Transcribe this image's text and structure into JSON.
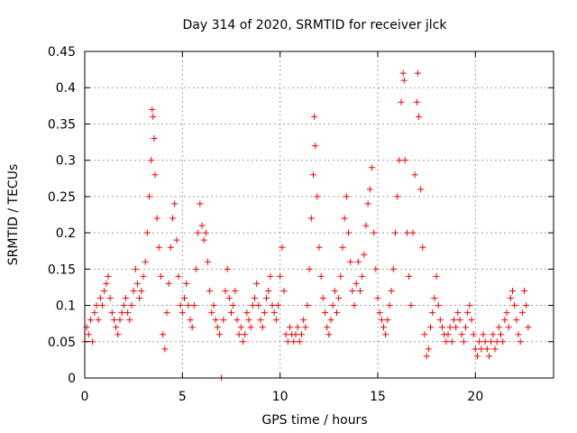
{
  "chart_data": {
    "type": "scatter",
    "title": "Day 314 of 2020, SRMTID for receiver jlck",
    "xlabel": "GPS time / hours",
    "ylabel": "SRMTID / TECUs",
    "xlim": [
      0,
      24
    ],
    "ylim": [
      0,
      0.45
    ],
    "xticks": [
      "0",
      "5",
      "10",
      "15",
      "20"
    ],
    "xtick_values": [
      0,
      5,
      10,
      15,
      20
    ],
    "yticks": [
      "0",
      "0.05",
      "0.1",
      "0.15",
      "0.2",
      "0.25",
      "0.3",
      "0.35",
      "0.4",
      "0.45"
    ],
    "ytick_values": [
      0,
      0.05,
      0.1,
      0.15,
      0.2,
      0.25,
      0.3,
      0.35,
      0.4,
      0.45
    ],
    "grid": true,
    "marker": "+",
    "color": "#ff0000",
    "series": [
      {
        "name": "SRMTID",
        "points": [
          [
            0.0,
            0.05
          ],
          [
            0.1,
            0.07
          ],
          [
            0.2,
            0.06
          ],
          [
            0.3,
            0.08
          ],
          [
            0.4,
            0.05
          ],
          [
            0.5,
            0.09
          ],
          [
            0.6,
            0.1
          ],
          [
            0.7,
            0.08
          ],
          [
            0.8,
            0.11
          ],
          [
            0.9,
            0.1
          ],
          [
            1.0,
            0.12
          ],
          [
            1.1,
            0.13
          ],
          [
            1.2,
            0.14
          ],
          [
            1.3,
            0.11
          ],
          [
            1.4,
            0.09
          ],
          [
            1.5,
            0.08
          ],
          [
            1.6,
            0.07
          ],
          [
            1.7,
            0.06
          ],
          [
            1.8,
            0.08
          ],
          [
            1.9,
            0.09
          ],
          [
            2.0,
            0.1
          ],
          [
            2.1,
            0.11
          ],
          [
            2.2,
            0.09
          ],
          [
            2.3,
            0.08
          ],
          [
            2.4,
            0.1
          ],
          [
            2.5,
            0.12
          ],
          [
            2.6,
            0.15
          ],
          [
            2.7,
            0.13
          ],
          [
            2.8,
            0.11
          ],
          [
            2.9,
            0.12
          ],
          [
            3.0,
            0.14
          ],
          [
            3.1,
            0.16
          ],
          [
            3.2,
            0.2
          ],
          [
            3.3,
            0.25
          ],
          [
            3.4,
            0.3
          ],
          [
            3.45,
            0.37
          ],
          [
            3.5,
            0.36
          ],
          [
            3.55,
            0.33
          ],
          [
            3.6,
            0.28
          ],
          [
            3.7,
            0.22
          ],
          [
            3.8,
            0.18
          ],
          [
            3.9,
            0.14
          ],
          [
            4.0,
            0.06
          ],
          [
            4.1,
            0.04
          ],
          [
            4.2,
            0.09
          ],
          [
            4.3,
            0.13
          ],
          [
            4.4,
            0.18
          ],
          [
            4.5,
            0.22
          ],
          [
            4.6,
            0.24
          ],
          [
            4.7,
            0.19
          ],
          [
            4.8,
            0.14
          ],
          [
            4.9,
            0.1
          ],
          [
            5.0,
            0.09
          ],
          [
            5.1,
            0.11
          ],
          [
            5.2,
            0.13
          ],
          [
            5.3,
            0.1
          ],
          [
            5.4,
            0.08
          ],
          [
            5.5,
            0.07
          ],
          [
            5.6,
            0.1
          ],
          [
            5.7,
            0.15
          ],
          [
            5.8,
            0.2
          ],
          [
            5.9,
            0.24
          ],
          [
            6.0,
            0.21
          ],
          [
            6.1,
            0.19
          ],
          [
            6.2,
            0.2
          ],
          [
            6.3,
            0.16
          ],
          [
            6.4,
            0.12
          ],
          [
            6.5,
            0.09
          ],
          [
            6.6,
            0.1
          ],
          [
            6.7,
            0.08
          ],
          [
            6.8,
            0.07
          ],
          [
            6.9,
            0.06
          ],
          [
            7.0,
            0.0
          ],
          [
            7.1,
            0.08
          ],
          [
            7.2,
            0.12
          ],
          [
            7.3,
            0.15
          ],
          [
            7.4,
            0.11
          ],
          [
            7.5,
            0.09
          ],
          [
            7.6,
            0.1
          ],
          [
            7.7,
            0.12
          ],
          [
            7.8,
            0.08
          ],
          [
            7.9,
            0.06
          ],
          [
            8.0,
            0.07
          ],
          [
            8.1,
            0.05
          ],
          [
            8.2,
            0.06
          ],
          [
            8.3,
            0.09
          ],
          [
            8.4,
            0.08
          ],
          [
            8.5,
            0.07
          ],
          [
            8.6,
            0.1
          ],
          [
            8.7,
            0.11
          ],
          [
            8.8,
            0.13
          ],
          [
            8.9,
            0.1
          ],
          [
            9.0,
            0.08
          ],
          [
            9.1,
            0.07
          ],
          [
            9.2,
            0.09
          ],
          [
            9.3,
            0.11
          ],
          [
            9.4,
            0.12
          ],
          [
            9.5,
            0.14
          ],
          [
            9.6,
            0.1
          ],
          [
            9.7,
            0.09
          ],
          [
            9.8,
            0.08
          ],
          [
            9.9,
            0.1
          ],
          [
            10.0,
            0.14
          ],
          [
            10.1,
            0.18
          ],
          [
            10.2,
            0.12
          ],
          [
            10.3,
            0.06
          ],
          [
            10.4,
            0.05
          ],
          [
            10.5,
            0.07
          ],
          [
            10.6,
            0.06
          ],
          [
            10.7,
            0.05
          ],
          [
            10.8,
            0.06
          ],
          [
            10.9,
            0.07
          ],
          [
            11.0,
            0.05
          ],
          [
            11.1,
            0.06
          ],
          [
            11.2,
            0.08
          ],
          [
            11.3,
            0.07
          ],
          [
            11.4,
            0.1
          ],
          [
            11.5,
            0.15
          ],
          [
            11.6,
            0.22
          ],
          [
            11.7,
            0.28
          ],
          [
            11.75,
            0.36
          ],
          [
            11.8,
            0.32
          ],
          [
            11.9,
            0.25
          ],
          [
            12.0,
            0.18
          ],
          [
            12.1,
            0.14
          ],
          [
            12.2,
            0.11
          ],
          [
            12.3,
            0.09
          ],
          [
            12.4,
            0.07
          ],
          [
            12.5,
            0.06
          ],
          [
            12.6,
            0.08
          ],
          [
            12.7,
            0.1
          ],
          [
            12.8,
            0.12
          ],
          [
            12.9,
            0.09
          ],
          [
            13.0,
            0.11
          ],
          [
            13.1,
            0.14
          ],
          [
            13.2,
            0.18
          ],
          [
            13.3,
            0.22
          ],
          [
            13.4,
            0.25
          ],
          [
            13.5,
            0.2
          ],
          [
            13.6,
            0.16
          ],
          [
            13.7,
            0.12
          ],
          [
            13.8,
            0.1
          ],
          [
            13.9,
            0.13
          ],
          [
            14.0,
            0.16
          ],
          [
            14.1,
            0.12
          ],
          [
            14.2,
            0.14
          ],
          [
            14.3,
            0.17
          ],
          [
            14.4,
            0.21
          ],
          [
            14.5,
            0.24
          ],
          [
            14.6,
            0.26
          ],
          [
            14.7,
            0.29
          ],
          [
            14.8,
            0.2
          ],
          [
            14.9,
            0.15
          ],
          [
            15.0,
            0.11
          ],
          [
            15.1,
            0.09
          ],
          [
            15.2,
            0.08
          ],
          [
            15.3,
            0.07
          ],
          [
            15.4,
            0.06
          ],
          [
            15.5,
            0.08
          ],
          [
            15.6,
            0.1
          ],
          [
            15.7,
            0.12
          ],
          [
            15.8,
            0.15
          ],
          [
            15.9,
            0.2
          ],
          [
            16.0,
            0.25
          ],
          [
            16.1,
            0.3
          ],
          [
            16.2,
            0.38
          ],
          [
            16.3,
            0.42
          ],
          [
            16.35,
            0.41
          ],
          [
            16.4,
            0.3
          ],
          [
            16.5,
            0.2
          ],
          [
            16.6,
            0.14
          ],
          [
            16.7,
            0.1
          ],
          [
            16.8,
            0.2
          ],
          [
            16.9,
            0.28
          ],
          [
            17.0,
            0.38
          ],
          [
            17.05,
            0.42
          ],
          [
            17.1,
            0.36
          ],
          [
            17.2,
            0.26
          ],
          [
            17.3,
            0.18
          ],
          [
            17.4,
            0.06
          ],
          [
            17.5,
            0.03
          ],
          [
            17.6,
            0.04
          ],
          [
            17.7,
            0.07
          ],
          [
            17.8,
            0.09
          ],
          [
            17.9,
            0.11
          ],
          [
            18.0,
            0.14
          ],
          [
            18.1,
            0.1
          ],
          [
            18.2,
            0.08
          ],
          [
            18.3,
            0.07
          ],
          [
            18.4,
            0.06
          ],
          [
            18.5,
            0.05
          ],
          [
            18.6,
            0.06
          ],
          [
            18.7,
            0.07
          ],
          [
            18.8,
            0.05
          ],
          [
            18.9,
            0.08
          ],
          [
            19.0,
            0.07
          ],
          [
            19.1,
            0.09
          ],
          [
            19.2,
            0.08
          ],
          [
            19.3,
            0.06
          ],
          [
            19.4,
            0.05
          ],
          [
            19.5,
            0.07
          ],
          [
            19.6,
            0.09
          ],
          [
            19.7,
            0.1
          ],
          [
            19.8,
            0.08
          ],
          [
            19.9,
            0.06
          ],
          [
            20.0,
            0.04
          ],
          [
            20.1,
            0.03
          ],
          [
            20.2,
            0.05
          ],
          [
            20.3,
            0.04
          ],
          [
            20.4,
            0.06
          ],
          [
            20.5,
            0.05
          ],
          [
            20.6,
            0.04
          ],
          [
            20.7,
            0.03
          ],
          [
            20.8,
            0.05
          ],
          [
            20.9,
            0.06
          ],
          [
            21.0,
            0.04
          ],
          [
            21.1,
            0.05
          ],
          [
            21.2,
            0.07
          ],
          [
            21.3,
            0.06
          ],
          [
            21.4,
            0.05
          ],
          [
            21.5,
            0.08
          ],
          [
            21.6,
            0.09
          ],
          [
            21.7,
            0.07
          ],
          [
            21.8,
            0.11
          ],
          [
            21.9,
            0.12
          ],
          [
            22.0,
            0.1
          ],
          [
            22.1,
            0.08
          ],
          [
            22.2,
            0.06
          ],
          [
            22.3,
            0.05
          ],
          [
            22.4,
            0.09
          ],
          [
            22.5,
            0.12
          ],
          [
            22.6,
            0.1
          ],
          [
            22.7,
            0.07
          ]
        ]
      }
    ]
  }
}
